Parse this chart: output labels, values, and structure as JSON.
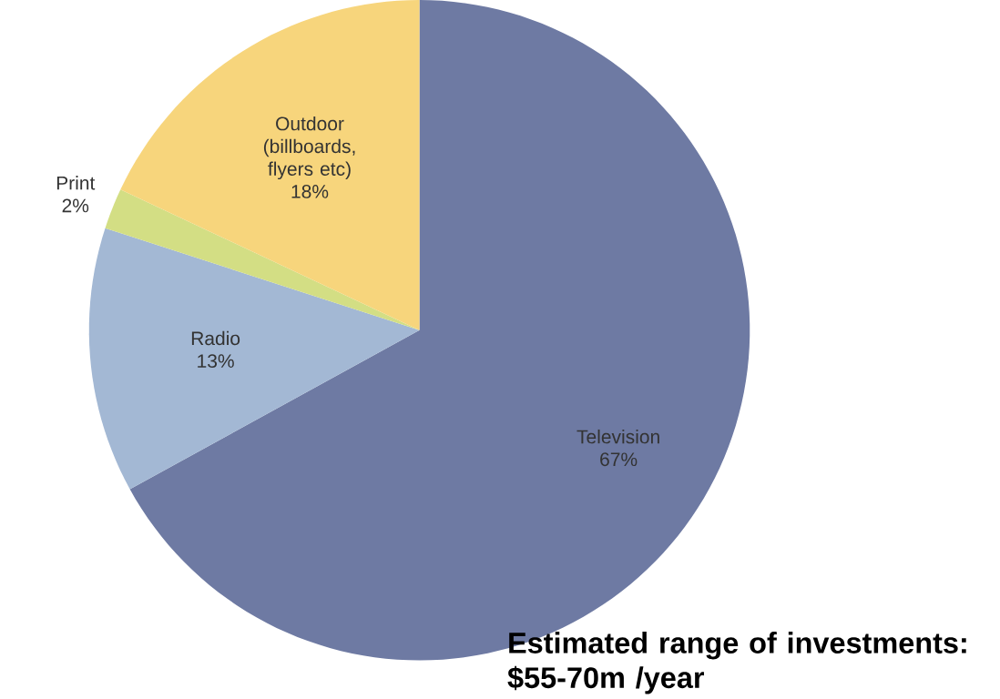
{
  "chart_data": {
    "type": "pie",
    "categories": [
      "Television",
      "Radio",
      "Print",
      "Outdoor (billboards, flyers etc)"
    ],
    "values": [
      67,
      13,
      2,
      18
    ],
    "value_labels": [
      "67%",
      "13%",
      "2%",
      "18%"
    ],
    "colors": [
      "#6e7aa3",
      "#a3b8d4",
      "#d3de84",
      "#f7d57c"
    ],
    "annotations": [
      "**Estimated range of investments: $55-70m /year**"
    ]
  }
}
